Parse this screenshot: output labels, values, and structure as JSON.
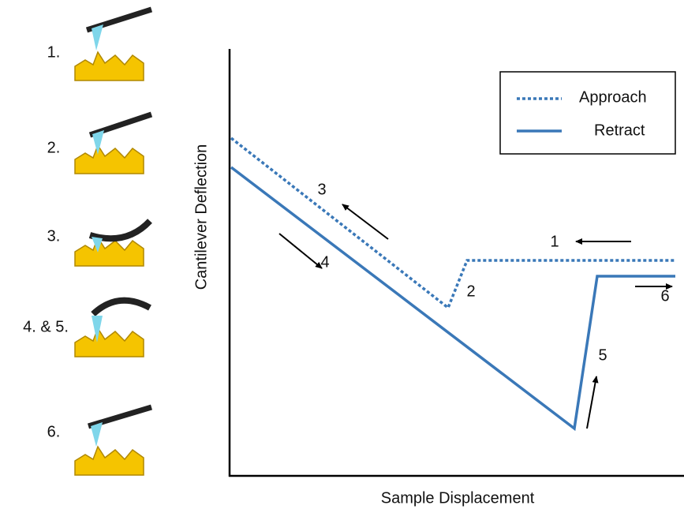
{
  "steps": [
    "1.",
    "2.",
    "3.",
    "4. & 5.",
    "6."
  ],
  "plot": {
    "x_label": "Sample Displacement",
    "y_label": "Cantilever Deflection",
    "legend": [
      "Approach",
      "Retract"
    ],
    "annotations": [
      "1",
      "2",
      "3",
      "4",
      "5",
      "6"
    ]
  }
}
